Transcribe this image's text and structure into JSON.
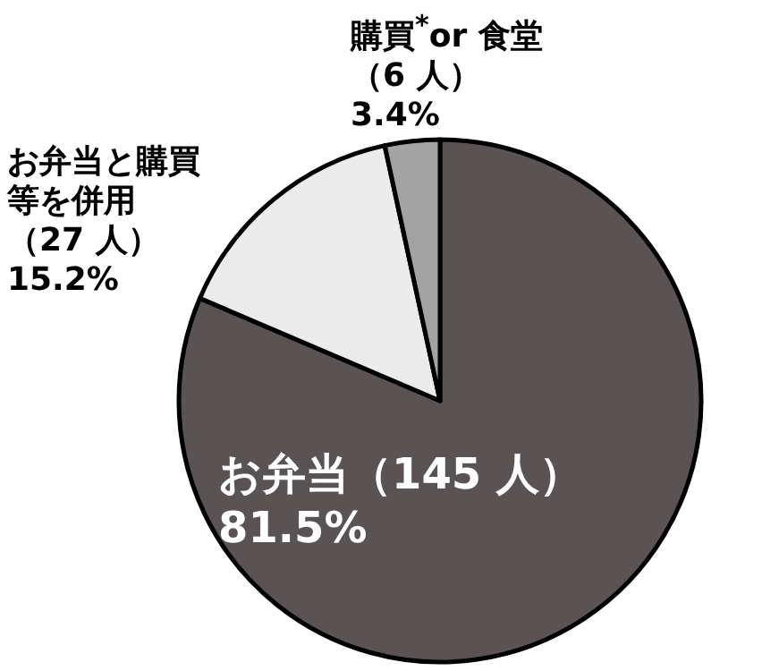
{
  "chart_data": {
    "type": "pie",
    "categories": [
      "お弁当（145 人）",
      "お弁当と購買等を併用（27 人）",
      "購買$^{*}$or 食堂（6 人）"
    ],
    "values": [
      81.5,
      15.2,
      3.4
    ],
    "colors": [
      "#595353",
      "#ebebeb",
      "#a3a3a3"
    ],
    "value_labels": [
      "81.5%",
      "15.2%",
      "3.4%"
    ]
  }
}
